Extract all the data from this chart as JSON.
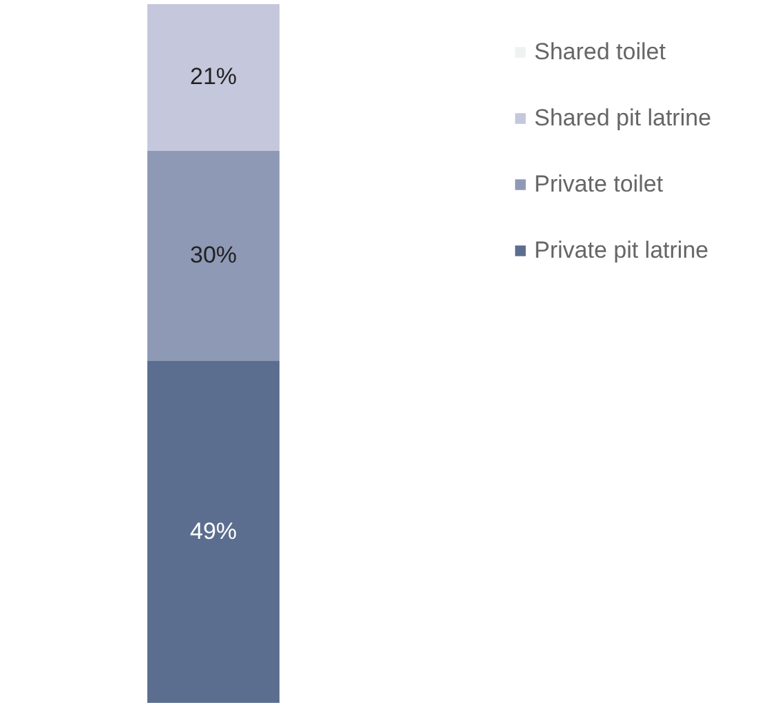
{
  "chart_data": {
    "type": "bar",
    "stacked": true,
    "categories": [
      null
    ],
    "legend": "top right",
    "series": [
      {
        "name": "Private pit latrine",
        "color": "#5b6e8f",
        "values": [
          49
        ],
        "value_labels": [
          "49%"
        ]
      },
      {
        "name": "Private toilet",
        "color": "#8e99b5",
        "values": [
          30
        ],
        "value_labels": [
          "30%"
        ]
      },
      {
        "name": "Shared pit latrine",
        "color": "#c5c7dc",
        "values": [
          21
        ],
        "value_labels": [
          "21%"
        ]
      },
      {
        "name": "Shared toilet",
        "color": "#eef2f0",
        "values": [
          0
        ],
        "value_labels": [
          null
        ]
      }
    ]
  }
}
